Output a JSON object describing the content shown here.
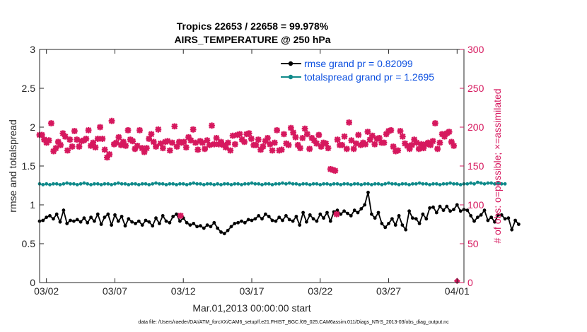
{
  "chart_data": {
    "type": "line",
    "title_line1": "Tropics 22653 / 22658 = 99.978%",
    "title_line2": "AIRS_TEMPERATURE @ 250 hPa",
    "xlabel": "Mar.01,2013 00:00:00 start",
    "ylabel_left": "rmse and totalspread",
    "ylabel_right": "# of obs: o=possible; ×=assimilated",
    "ylim_left": [
      0,
      3
    ],
    "ylim_right": [
      0,
      300
    ],
    "xlim_days": [
      0.5,
      31.5
    ],
    "left_ticks": [
      "0",
      "0.5",
      "1",
      "1.5",
      "2",
      "2.5",
      "3"
    ],
    "left_tick_values": [
      0,
      0.5,
      1,
      1.5,
      2,
      2.5,
      3
    ],
    "right_ticks": [
      "0",
      "50",
      "100",
      "150",
      "200",
      "250",
      "300"
    ],
    "right_tick_values": [
      0,
      50,
      100,
      150,
      200,
      250,
      300
    ],
    "x_tick_labels": [
      "03/02",
      "03/07",
      "03/12",
      "03/17",
      "03/22",
      "03/27",
      "04/01"
    ],
    "x_tick_days": [
      1,
      6,
      11,
      16,
      21,
      26,
      31
    ],
    "legend": [
      {
        "label": "rmse grand pr = 0.82099",
        "color": "#000000"
      },
      {
        "label": "totalspread grand pr = 1.2695",
        "color": "#0f8a8a"
      }
    ],
    "series": [
      {
        "name": "rmse",
        "color": "#000000",
        "values": [
          0.79,
          0.8,
          0.84,
          0.86,
          0.82,
          0.88,
          0.78,
          0.93,
          0.76,
          0.8,
          0.79,
          0.81,
          0.78,
          0.83,
          0.77,
          0.84,
          0.79,
          0.88,
          0.75,
          0.84,
          0.88,
          0.74,
          0.87,
          0.79,
          0.85,
          0.73,
          0.82,
          0.78,
          0.76,
          0.79,
          0.74,
          0.8,
          0.78,
          0.73,
          0.83,
          0.76,
          0.86,
          0.79,
          0.77,
          0.85,
          0.88,
          0.79,
          0.83,
          0.77,
          0.74,
          0.76,
          0.72,
          0.73,
          0.7,
          0.74,
          0.72,
          0.77,
          0.7,
          0.65,
          0.63,
          0.67,
          0.72,
          0.76,
          0.77,
          0.79,
          0.77,
          0.81,
          0.8,
          0.82,
          0.86,
          0.82,
          0.88,
          0.85,
          0.8,
          0.79,
          0.84,
          0.8,
          0.86,
          0.81,
          0.79,
          0.85,
          0.74,
          0.9,
          0.78,
          0.87,
          0.82,
          0.79,
          0.88,
          0.83,
          0.9,
          0.79,
          0.91,
          0.93,
          0.88,
          0.92,
          0.89,
          0.86,
          0.93,
          0.9,
          0.95,
          1.0,
          1.16,
          0.88,
          0.83,
          0.9,
          0.76,
          0.71,
          0.76,
          0.82,
          0.74,
          0.86,
          0.74,
          0.68,
          0.92,
          0.83,
          0.82,
          0.76,
          0.88,
          0.82,
          0.96,
          0.97,
          0.9,
          0.98,
          0.93,
          0.98,
          0.92,
          0.94,
          1.0,
          0.92,
          0.94,
          0.93,
          0.86,
          0.79,
          0.84,
          0.87,
          0.93,
          0.8,
          0.84,
          0.78,
          0.87,
          0.87,
          0.82,
          0.83,
          0.68,
          0.8,
          0.75
        ],
        "start_day": 0.5,
        "step_days": 0.25
      },
      {
        "name": "totalspread",
        "color": "#0f8a8a",
        "values": [
          1.27,
          1.26,
          1.27,
          1.26,
          1.27,
          1.27,
          1.26,
          1.27,
          1.28,
          1.27,
          1.27,
          1.26,
          1.27,
          1.28,
          1.27,
          1.26,
          1.27,
          1.27,
          1.26,
          1.27,
          1.27,
          1.26,
          1.27,
          1.28,
          1.27,
          1.27,
          1.26,
          1.27,
          1.27,
          1.26,
          1.27,
          1.27,
          1.26,
          1.27,
          1.28,
          1.27,
          1.27,
          1.26,
          1.27,
          1.27,
          1.26,
          1.27,
          1.27,
          1.26,
          1.27,
          1.28,
          1.27,
          1.27,
          1.26,
          1.27,
          1.27,
          1.26,
          1.27,
          1.26,
          1.27,
          1.27,
          1.26,
          1.27,
          1.27,
          1.26,
          1.27,
          1.27,
          1.28,
          1.27,
          1.27,
          1.26,
          1.27,
          1.27,
          1.26,
          1.27,
          1.27,
          1.28,
          1.27,
          1.28,
          1.27,
          1.27,
          1.26,
          1.27,
          1.27,
          1.26,
          1.27,
          1.27,
          1.26,
          1.27,
          1.27,
          1.26,
          1.27,
          1.27,
          1.26,
          1.27,
          1.27,
          1.26,
          1.27,
          1.27,
          1.26,
          1.27,
          1.27,
          1.26,
          1.27,
          1.27,
          1.26,
          1.27,
          1.28,
          1.27,
          1.27,
          1.26,
          1.27,
          1.27,
          1.26,
          1.27,
          1.27,
          1.28,
          1.27,
          1.27,
          1.26,
          1.27,
          1.27,
          1.26,
          1.27,
          1.27,
          1.28,
          1.27,
          1.27,
          1.26,
          1.27,
          1.27,
          1.28,
          1.27,
          1.29,
          1.28,
          1.27,
          1.28,
          1.28,
          1.27,
          1.28,
          1.27,
          1.27
        ],
        "start_day": 0.5,
        "step_days": 0.25
      },
      {
        "name": "nposs",
        "color": "#d6185e",
        "values": [
          190,
          190,
          184,
          180,
          183,
          205,
          169,
          173,
          181,
          177,
          192,
          188,
          170,
          184,
          175,
          195,
          184,
          175,
          182,
          183,
          185,
          196,
          176,
          180,
          174,
          185,
          200,
          185,
          171,
          161,
          165,
          208,
          178,
          180,
          187,
          177,
          181,
          176,
          196,
          184,
          182,
          172,
          176,
          196,
          173,
          168,
          173,
          185,
          191,
          181,
          175,
          197,
          179,
          173,
          181,
          182,
          170,
          180,
          201,
          175,
          181,
          180,
          181,
          174,
          187,
          183,
          197,
          180,
          171,
          182,
          180,
          172,
          183,
          177,
          202,
          178,
          186,
          178,
          181,
          177,
          174,
          180,
          170,
          189,
          178,
          190,
          191,
          184,
          181,
          191,
          192,
          185,
          177,
          177,
          184,
          171,
          175,
          182,
          186,
          178,
          170,
          180,
          196,
          170,
          171,
          191,
          179,
          177,
          199,
          193,
          187,
          177,
          173,
          186,
          198,
          191,
          172,
          186,
          183,
          179,
          190,
          175,
          180,
          179,
          173,
          146,
          145,
          144,
          184,
          177,
          177,
          188,
          172,
          206,
          183,
          172,
          179,
          190,
          177,
          180,
          178,
          194,
          184,
          189,
          178,
          185,
          186,
          180,
          180,
          191,
          195,
          196,
          175,
          169,
          170,
          195,
          188,
          179,
          176,
          172,
          177,
          184,
          180,
          172,
          178,
          173,
          178,
          180,
          177,
          182,
          205,
          172,
          180,
          191,
          188,
          192,
          194,
          181,
          176
        ],
        "start_day": 0.5,
        "step_days": 0.17
      },
      {
        "name": "nused",
        "color": "#d6185e",
        "points": [
          {
            "day": 10.8,
            "value": 86
          },
          {
            "day": 22.2,
            "value": 88
          },
          {
            "day": 31.0,
            "value": 2
          }
        ]
      }
    ]
  },
  "footer": {
    "text": "data file: /Users/raeder/DAI/ATM_forcXX/CAM6_setup/f.e21.FHIST_BGC.f09_025.CAM6assim.011/Diags_NTrS_2013-03/obs_diag_output.nc"
  }
}
